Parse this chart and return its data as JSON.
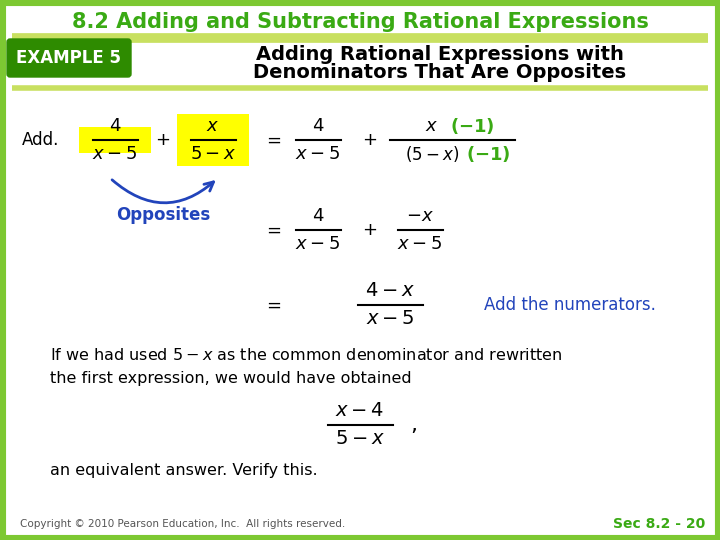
{
  "title": "8.2 Adding and Subtracting Rational Expressions",
  "title_color": "#3aaa14",
  "title_fontsize": 15,
  "example_label": "EXAMPLE 5",
  "example_bg": "#2e8b00",
  "example_text_color": "white",
  "subtitle_line1": "Adding Rational Expressions with",
  "subtitle_line2": "Denominators That Are Opposites",
  "subtitle_color": "black",
  "subtitle_fontsize": 14,
  "bg_color": "white",
  "outer_border_color": "#7dc832",
  "divider_color": "#c8e060",
  "blue_arrow_color": "#2244bb",
  "opposites_color": "#2244bb",
  "highlight_yellow": "#ffff00",
  "add_numerators_color": "#2244bb",
  "footer_text": "Copyright © 2010 Pearson Education, Inc.  All rights reserved.",
  "footer_right": "Sec 8.2 - 20",
  "footer_color": "#3aaa14"
}
